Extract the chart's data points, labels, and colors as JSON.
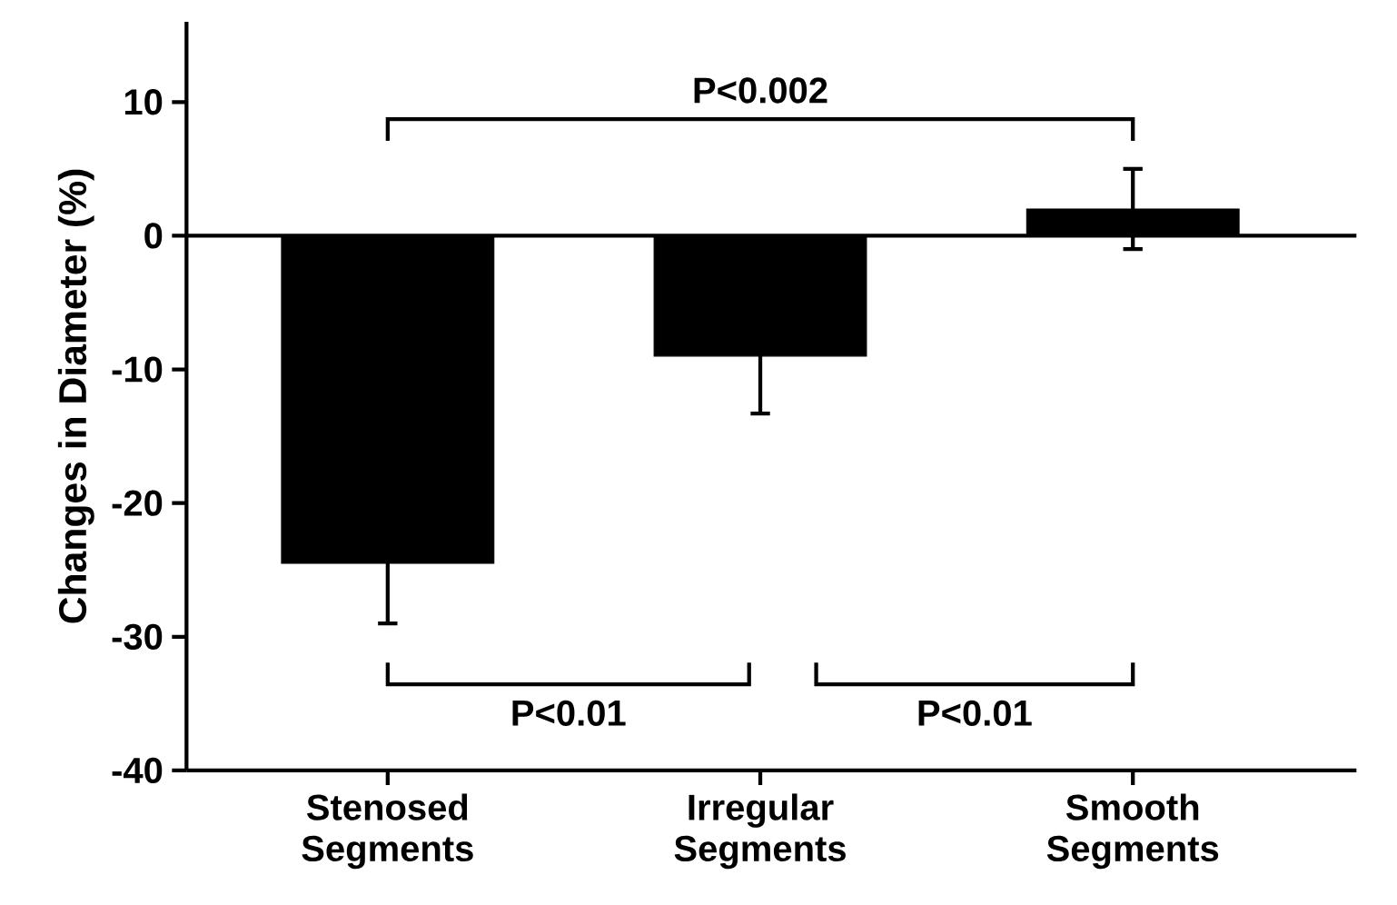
{
  "chart_data": {
    "type": "bar",
    "ylabel": "Changes in Diameter (%)",
    "categories": [
      "Stenosed Segments",
      "Irregular Segments",
      "Smooth Segments"
    ],
    "values": [
      -24.5,
      -9,
      2
    ],
    "errors": [
      4.5,
      4.3,
      3
    ],
    "color": "#000000",
    "ylim": [
      -40,
      16
    ],
    "yticks": [
      -40,
      -30,
      -20,
      -10,
      0,
      10
    ],
    "annotations": [
      "P<0.002",
      "P<0.01",
      "P<0.01"
    ]
  }
}
